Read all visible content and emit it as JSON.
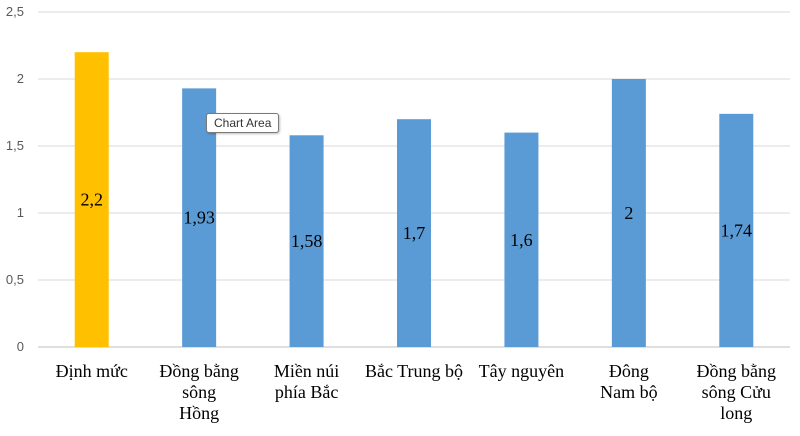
{
  "chart_data": {
    "type": "bar",
    "categories": [
      [
        "Định mức"
      ],
      [
        "Đồng bằng",
        "sông",
        "Hồng"
      ],
      [
        "Miền núi",
        "phía Bắc"
      ],
      [
        "Bắc Trung bộ"
      ],
      [
        "Tây nguyên"
      ],
      [
        "Đông",
        "Nam bộ"
      ],
      [
        "Đồng bằng",
        "sông Cửu",
        "long"
      ]
    ],
    "values": [
      2.2,
      1.93,
      1.58,
      1.7,
      1.6,
      2,
      1.74
    ],
    "data_labels": [
      "2,2",
      "1,93",
      "1,58",
      "1,7",
      "1,6",
      "2",
      "1,74"
    ],
    "bar_colors": [
      "#FFC000",
      "#5B9BD5",
      "#5B9BD5",
      "#5B9BD5",
      "#5B9BD5",
      "#5B9BD5",
      "#5B9BD5"
    ],
    "ylim": [
      0,
      2.5
    ],
    "yticks": [
      0,
      0.5,
      1,
      1.5,
      2,
      2.5
    ],
    "ytick_labels": [
      "0",
      "0,5",
      "1",
      "1,5",
      "2",
      "2,5"
    ],
    "grid": true,
    "legend": "none",
    "title": "",
    "xlabel": "",
    "ylabel": ""
  },
  "tooltip": {
    "text": "Chart Area"
  }
}
